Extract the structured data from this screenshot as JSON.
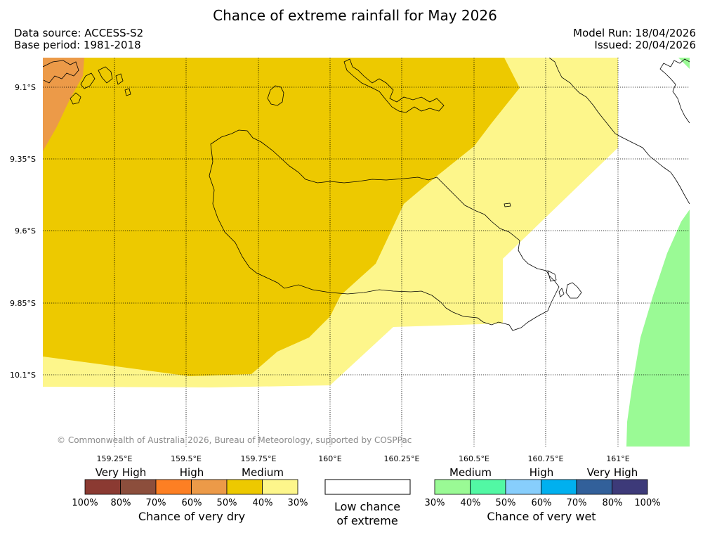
{
  "title": "Chance of extreme rainfall for May 2026",
  "header": {
    "data_source": "Data source: ACCESS-S2",
    "base_period": "Base period: 1981-2018",
    "model_run": "Model Run: 18/04/2026",
    "issued": "Issued: 20/04/2026"
  },
  "map": {
    "lon_labels": [
      "159.25°E",
      "159.5°E",
      "159.75°E",
      "160°E",
      "160.25°E",
      "160.5°E",
      "160.75°E",
      "161°E"
    ],
    "lat_labels": [
      "9.1°S",
      "9.35°S",
      "9.6°S",
      "9.85°S",
      "10.1°S"
    ],
    "copyright": "© Commonwealth of Australia 2026, Bureau of Meteorology, supported by COSPPac"
  },
  "legend": {
    "dry": {
      "categories": [
        "Very High",
        "High",
        "Medium"
      ],
      "ticks": [
        "100%",
        "80%",
        "70%",
        "60%",
        "50%",
        "40%",
        "30%"
      ],
      "caption": "Chance of very dry",
      "colors": [
        "#8b3a32",
        "#8c4e3c",
        "#fd7f23",
        "#ec9a48",
        "#edc900",
        "#fdf68b"
      ]
    },
    "low": {
      "line1": "Low chance",
      "line2": "of extreme"
    },
    "wet": {
      "categories": [
        "Medium",
        "High",
        "Very High"
      ],
      "ticks": [
        "30%",
        "40%",
        "50%",
        "60%",
        "70%",
        "80%",
        "100%"
      ],
      "caption": "Chance of very wet",
      "colors": [
        "#9afa95",
        "#52f8a4",
        "#87cefc",
        "#00b0ef",
        "#32609a",
        "#3d3a79"
      ]
    }
  }
}
